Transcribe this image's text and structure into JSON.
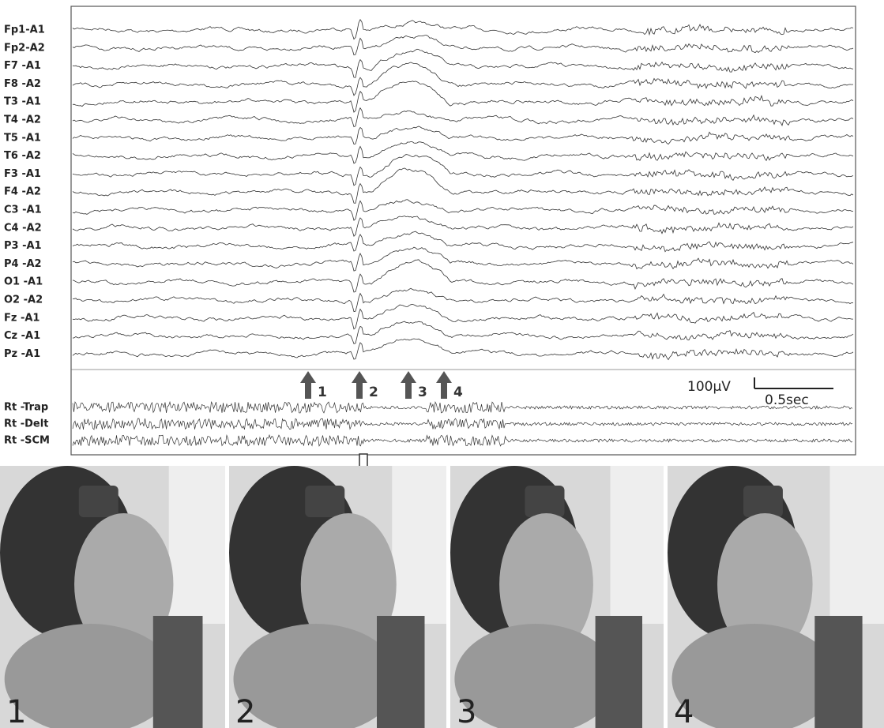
{
  "eeg": {
    "channels": [
      "Fp1-A1",
      "Fp2-A2",
      "F7 -A1",
      "F8 -A2",
      "T3 -A1",
      "T4 -A2",
      "T5 -A1",
      "T6 -A2",
      "F3 -A1",
      "F4 -A2",
      "C3 -A1",
      "C4 -A2",
      "P3 -A1",
      "P4 -A2",
      "O1 -A1",
      "O2 -A2",
      "Fz -A1",
      "Cz -A1",
      "Pz -A1"
    ],
    "emg_channels": [
      "Rt -Trap",
      "Rt -Delt",
      "Rt -SCM"
    ],
    "markers": [
      "1",
      "2",
      "3",
      "4"
    ],
    "scale": {
      "amplitude": "100µV",
      "time": "0.5sec"
    }
  },
  "frames": [
    {
      "label": "1"
    },
    {
      "label": "2"
    },
    {
      "label": "3"
    },
    {
      "label": "4"
    }
  ]
}
